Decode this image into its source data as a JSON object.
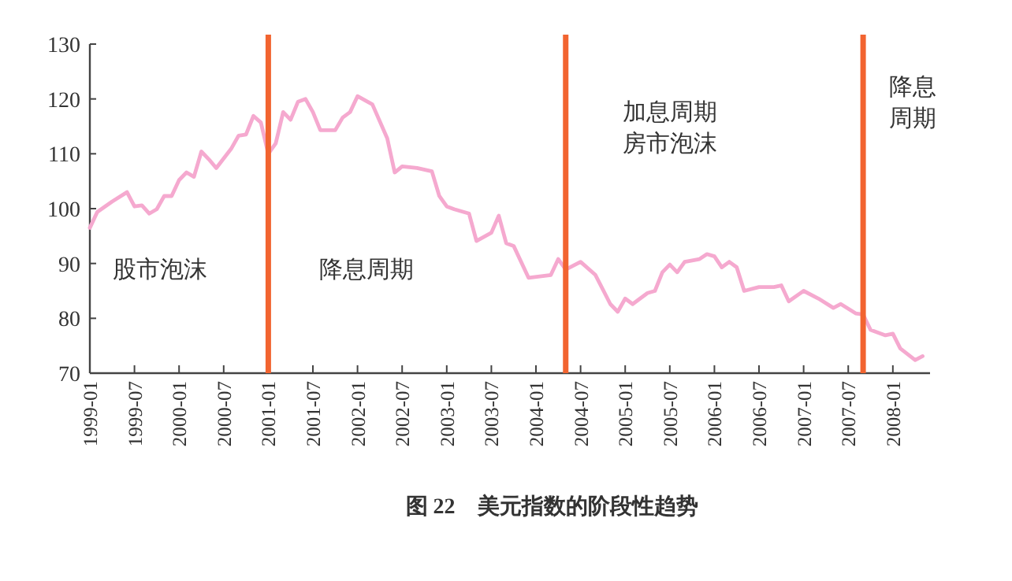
{
  "chart_data": {
    "type": "line",
    "title": "图 22　美元指数的阶段性趋势",
    "x": [
      "1999-01",
      "1999-02",
      "1999-04",
      "1999-06",
      "1999-07",
      "1999-08",
      "1999-09",
      "1999-10",
      "1999-11",
      "1999-12",
      "2000-01",
      "2000-02",
      "2000-03",
      "2000-04",
      "2000-05",
      "2000-06",
      "2000-08",
      "2000-09",
      "2000-10",
      "2000-11",
      "2000-12",
      "2001-01",
      "2001-02",
      "2001-03",
      "2001-04",
      "2001-05",
      "2001-06",
      "2001-07",
      "2001-08",
      "2001-10",
      "2001-11",
      "2001-12",
      "2002-01",
      "2002-03",
      "2002-05",
      "2002-06",
      "2002-07",
      "2002-09",
      "2002-11",
      "2002-12",
      "2003-01",
      "2003-02",
      "2003-04",
      "2003-05",
      "2003-07",
      "2003-08",
      "2003-09",
      "2003-10",
      "2003-12",
      "2004-03",
      "2004-04",
      "2004-05",
      "2004-07",
      "2004-09",
      "2004-11",
      "2004-12",
      "2005-01",
      "2005-02",
      "2005-04",
      "2005-05",
      "2005-06",
      "2005-07",
      "2005-08",
      "2005-09",
      "2005-11",
      "2005-12",
      "2006-01",
      "2006-02",
      "2006-03",
      "2006-04",
      "2006-05",
      "2006-07",
      "2006-09",
      "2006-10",
      "2006-11",
      "2007-01",
      "2007-03",
      "2007-05",
      "2007-06",
      "2007-08",
      "2007-09",
      "2007-10",
      "2007-12",
      "2008-01",
      "2008-02",
      "2008-04",
      "2008-05"
    ],
    "series": [
      {
        "color": "#f5a9cf",
        "values": [
          96.5,
          99.4,
          101.3,
          103,
          100.4,
          100.6,
          99.1,
          99.9,
          102.3,
          102.3,
          105.2,
          106.6,
          105.8,
          110.4,
          109,
          107.4,
          110.9,
          113.3,
          113.5,
          116.9,
          115.7,
          110,
          111.9,
          117.6,
          116.2,
          119.5,
          120,
          117.6,
          114.3,
          114.3,
          116.6,
          117.6,
          120.5,
          119,
          112.8,
          106.6,
          107.7,
          107.4,
          106.8,
          102.3,
          100.4,
          99.9,
          99.1,
          94.1,
          95.6,
          98.7,
          93.7,
          93.2,
          87.4,
          87.9,
          90.8,
          88.9,
          90.3,
          87.9,
          82.6,
          81.2,
          83.6,
          82.6,
          84.6,
          85,
          88.4,
          89.8,
          88.4,
          90.3,
          90.8,
          91.7,
          91.3,
          89.3,
          90.3,
          89.3,
          85,
          85.7,
          85.7,
          86,
          83.1,
          85,
          83.6,
          81.9,
          82.6,
          80.9,
          80.7,
          77.9,
          76.9,
          77.2,
          74.5,
          72.4,
          73.1
        ]
      }
    ],
    "xlim": [
      "1999-01",
      "2008-06"
    ],
    "ylim": [
      70,
      130
    ],
    "yticks": [
      70,
      80,
      90,
      100,
      110,
      120,
      130
    ],
    "xticks": [
      "1999-01",
      "1999-07",
      "2000-01",
      "2000-07",
      "2001-01",
      "2001-07",
      "2002-01",
      "2002-07",
      "2003-01",
      "2003-07",
      "2004-01",
      "2004-07",
      "2005-01",
      "2005-07",
      "2006-01",
      "2006-07",
      "2007-01",
      "2007-07",
      "2008-01"
    ],
    "ref_lines": [
      {
        "axis": "x",
        "value": "2001-01",
        "color": "#f26430"
      },
      {
        "axis": "x",
        "value": "2004-05",
        "color": "#f26430"
      },
      {
        "axis": "x",
        "value": "2007-09",
        "color": "#f26430"
      }
    ],
    "annotations": [
      "股市泡沫",
      "降息周期",
      "加息周期房市泡沫",
      "降息周期"
    ],
    "line_style": "solid",
    "grid": false
  }
}
